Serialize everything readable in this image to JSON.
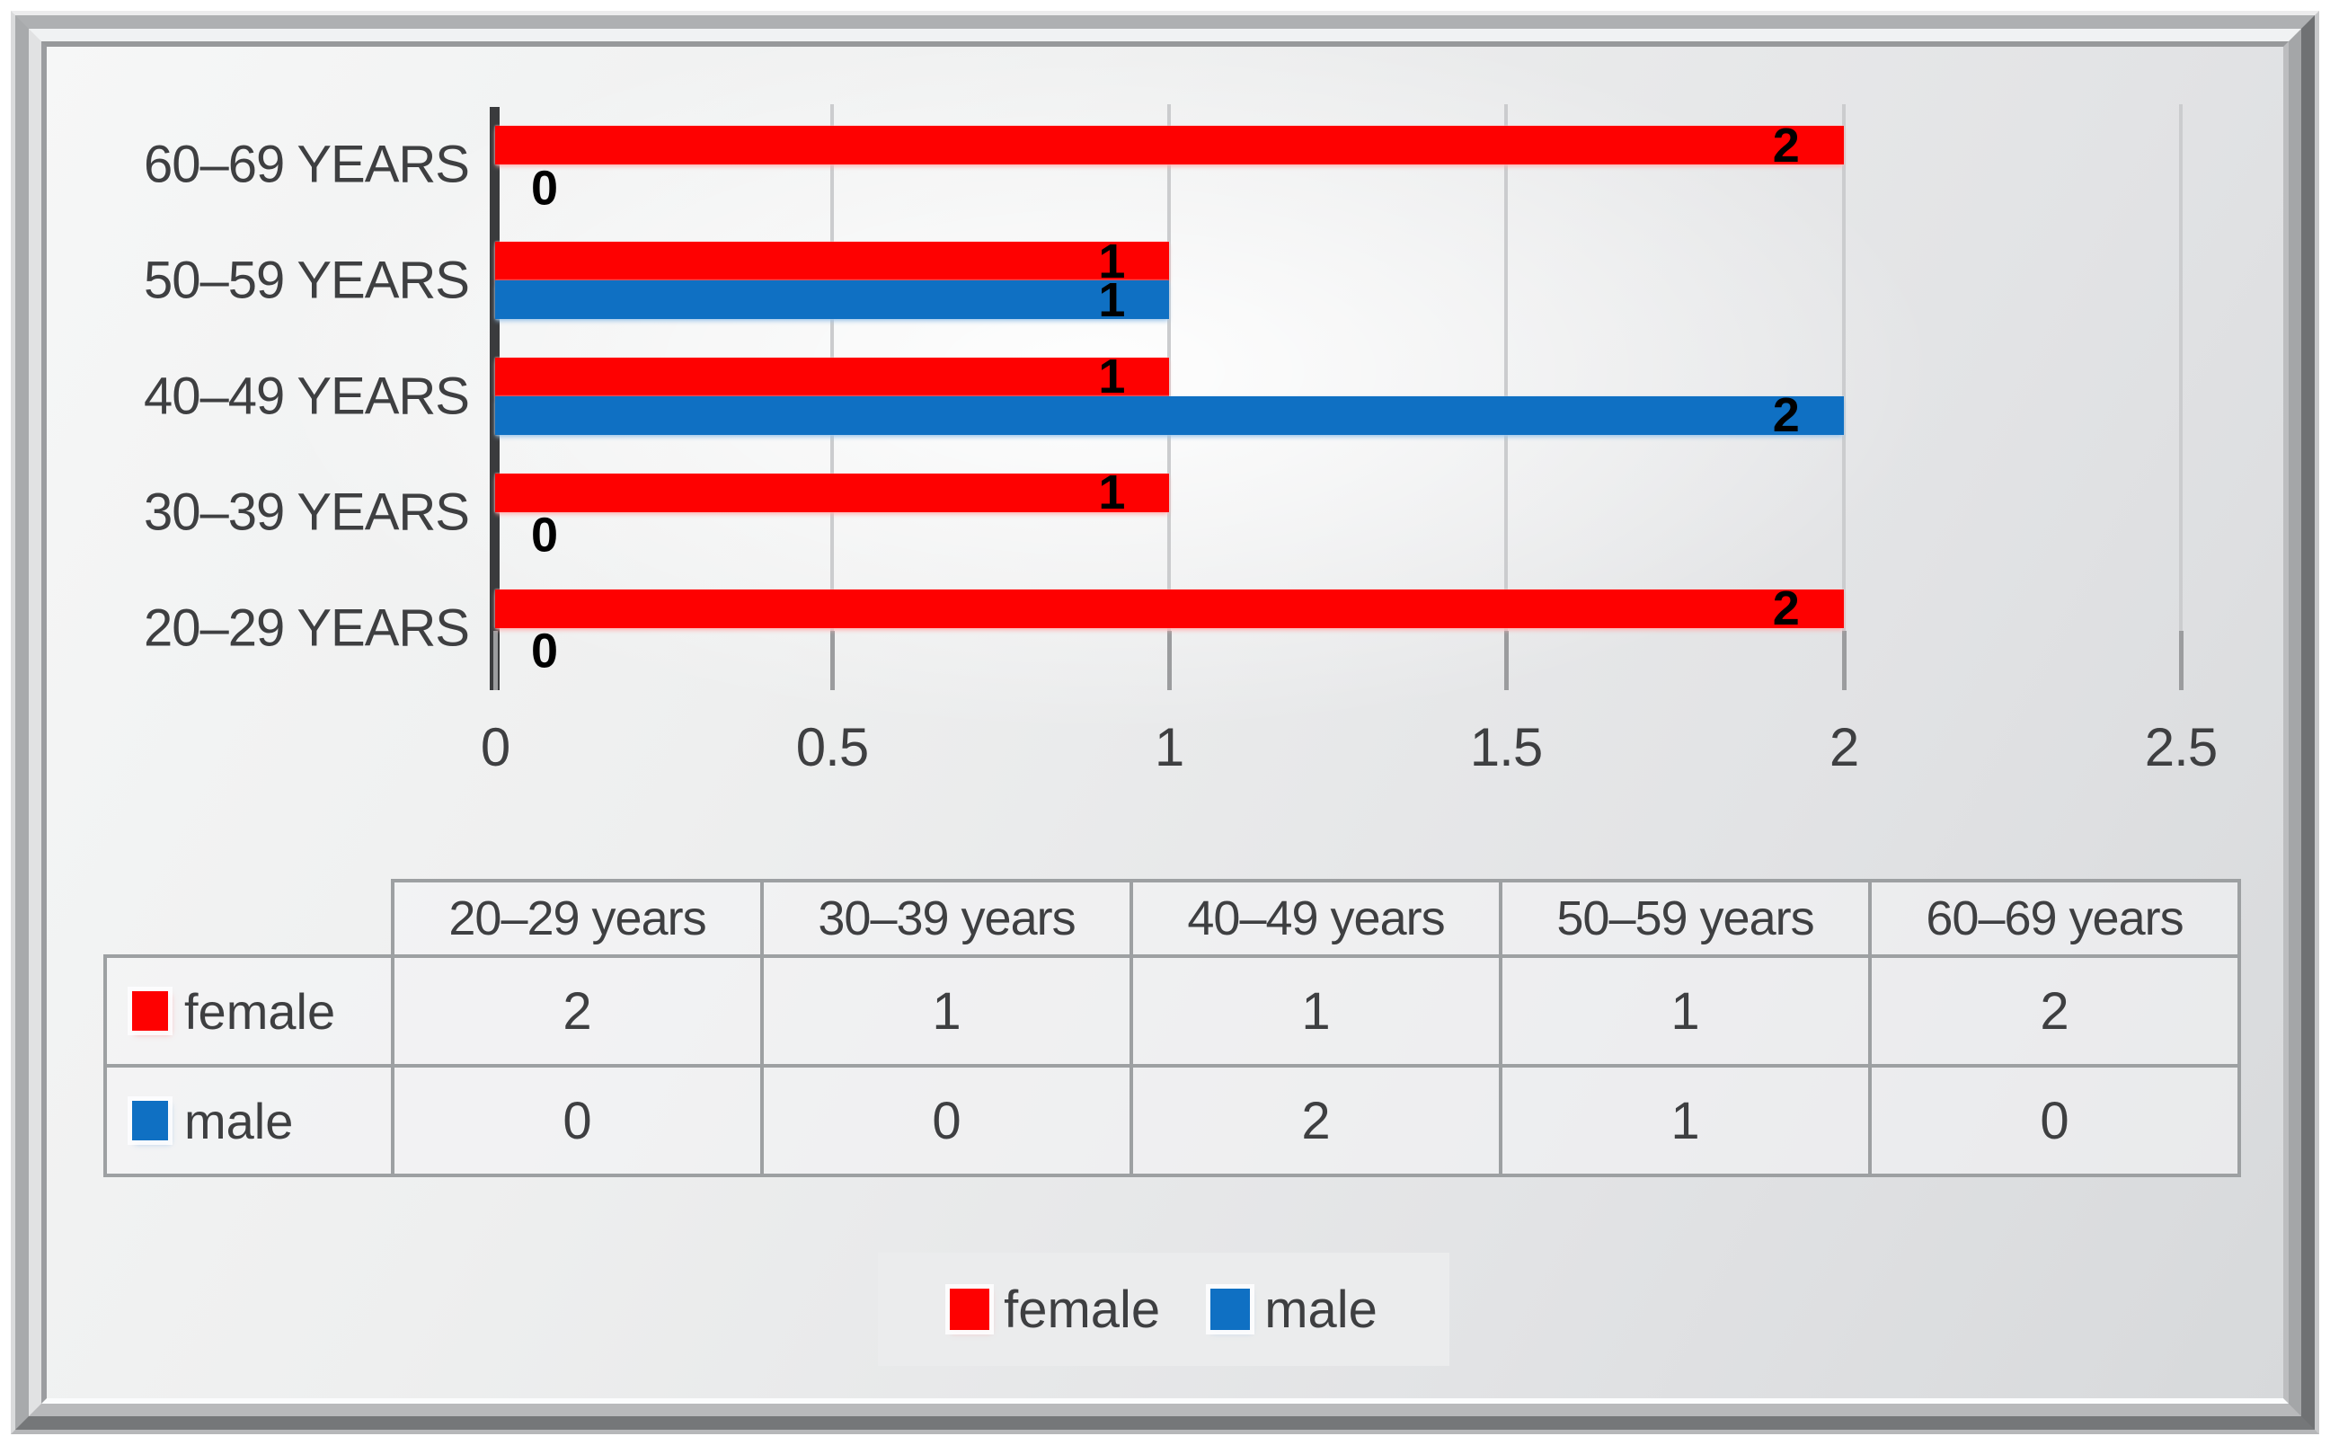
{
  "chart_data": {
    "type": "bar",
    "orientation": "horizontal",
    "title": "",
    "xlabel": "",
    "ylabel": "",
    "categories": [
      "20–29 years",
      "30–39 years",
      "40–49 years",
      "50–59 years",
      "60–69 years"
    ],
    "category_axis_labels": [
      "60–69 YEARS",
      "50–59 YEARS",
      "40–49 YEARS",
      "30–39 YEARS",
      "20–29 YEARS"
    ],
    "series": [
      {
        "name": "female",
        "color": "#fe0101",
        "values": [
          2,
          1,
          1,
          1,
          2
        ]
      },
      {
        "name": "male",
        "color": "#0f70c3",
        "values": [
          0,
          0,
          2,
          1,
          0
        ]
      }
    ],
    "xlim": [
      0,
      2.5
    ],
    "x_ticks": [
      "0",
      "0.5",
      "1",
      "1.5",
      "2",
      "2.5"
    ],
    "grid": true,
    "data_labels": "inside-end",
    "legend_position": "bottom"
  },
  "table": {
    "column_headers": [
      "20–29 years",
      "30–39 years",
      "40–49 years",
      "50–59 years",
      "60–69 years"
    ],
    "rows": [
      {
        "label": "female",
        "swatch_color": "#fe0101",
        "values": [
          "2",
          "1",
          "1",
          "1",
          "2"
        ]
      },
      {
        "label": "male",
        "swatch_color": "#0f70c3",
        "values": [
          "0",
          "0",
          "2",
          "1",
          "0"
        ]
      }
    ]
  },
  "legend": {
    "items": [
      {
        "label": "female",
        "color": "#fe0101"
      },
      {
        "label": "male",
        "color": "#0f70c3"
      }
    ]
  },
  "colors": {
    "female_bar": "#fe0101",
    "male_bar": "#0f70c3",
    "axis_line": "#3a3b3d",
    "gridline": "#cbccce",
    "tick": "#9b9c9e",
    "text": "#3e3f41",
    "data_label": "#000000",
    "table_border": "#9da0a2",
    "legend_background": "#ebeced"
  }
}
